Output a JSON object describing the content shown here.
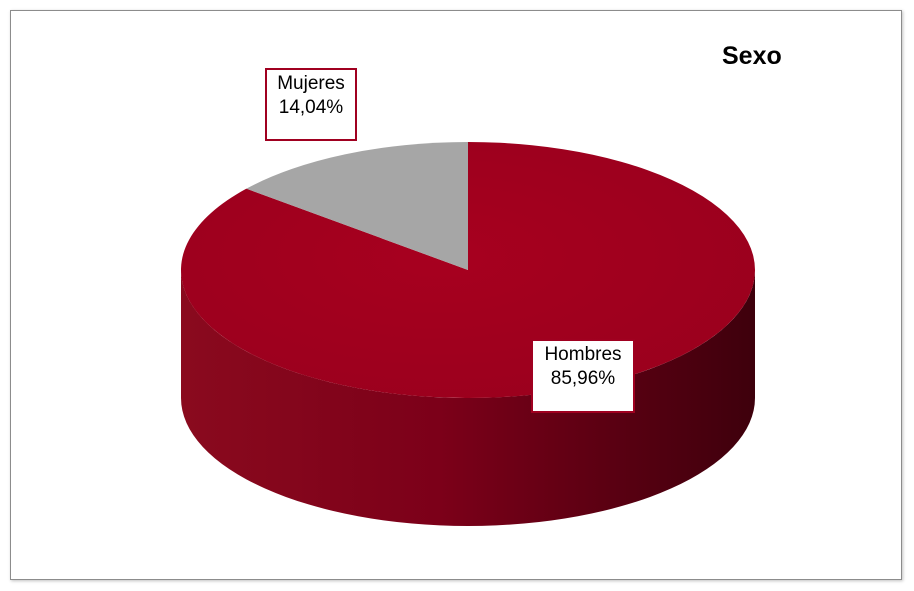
{
  "chart_data": {
    "type": "pie",
    "style": "3d",
    "title": "Sexo",
    "categories": [
      "Hombres",
      "Mujeres"
    ],
    "values": [
      85.96,
      14.04
    ],
    "value_labels": [
      "85,96%",
      "14,04%"
    ],
    "colors": [
      "#a50022",
      "#a6a6a6"
    ],
    "legend": "none"
  }
}
